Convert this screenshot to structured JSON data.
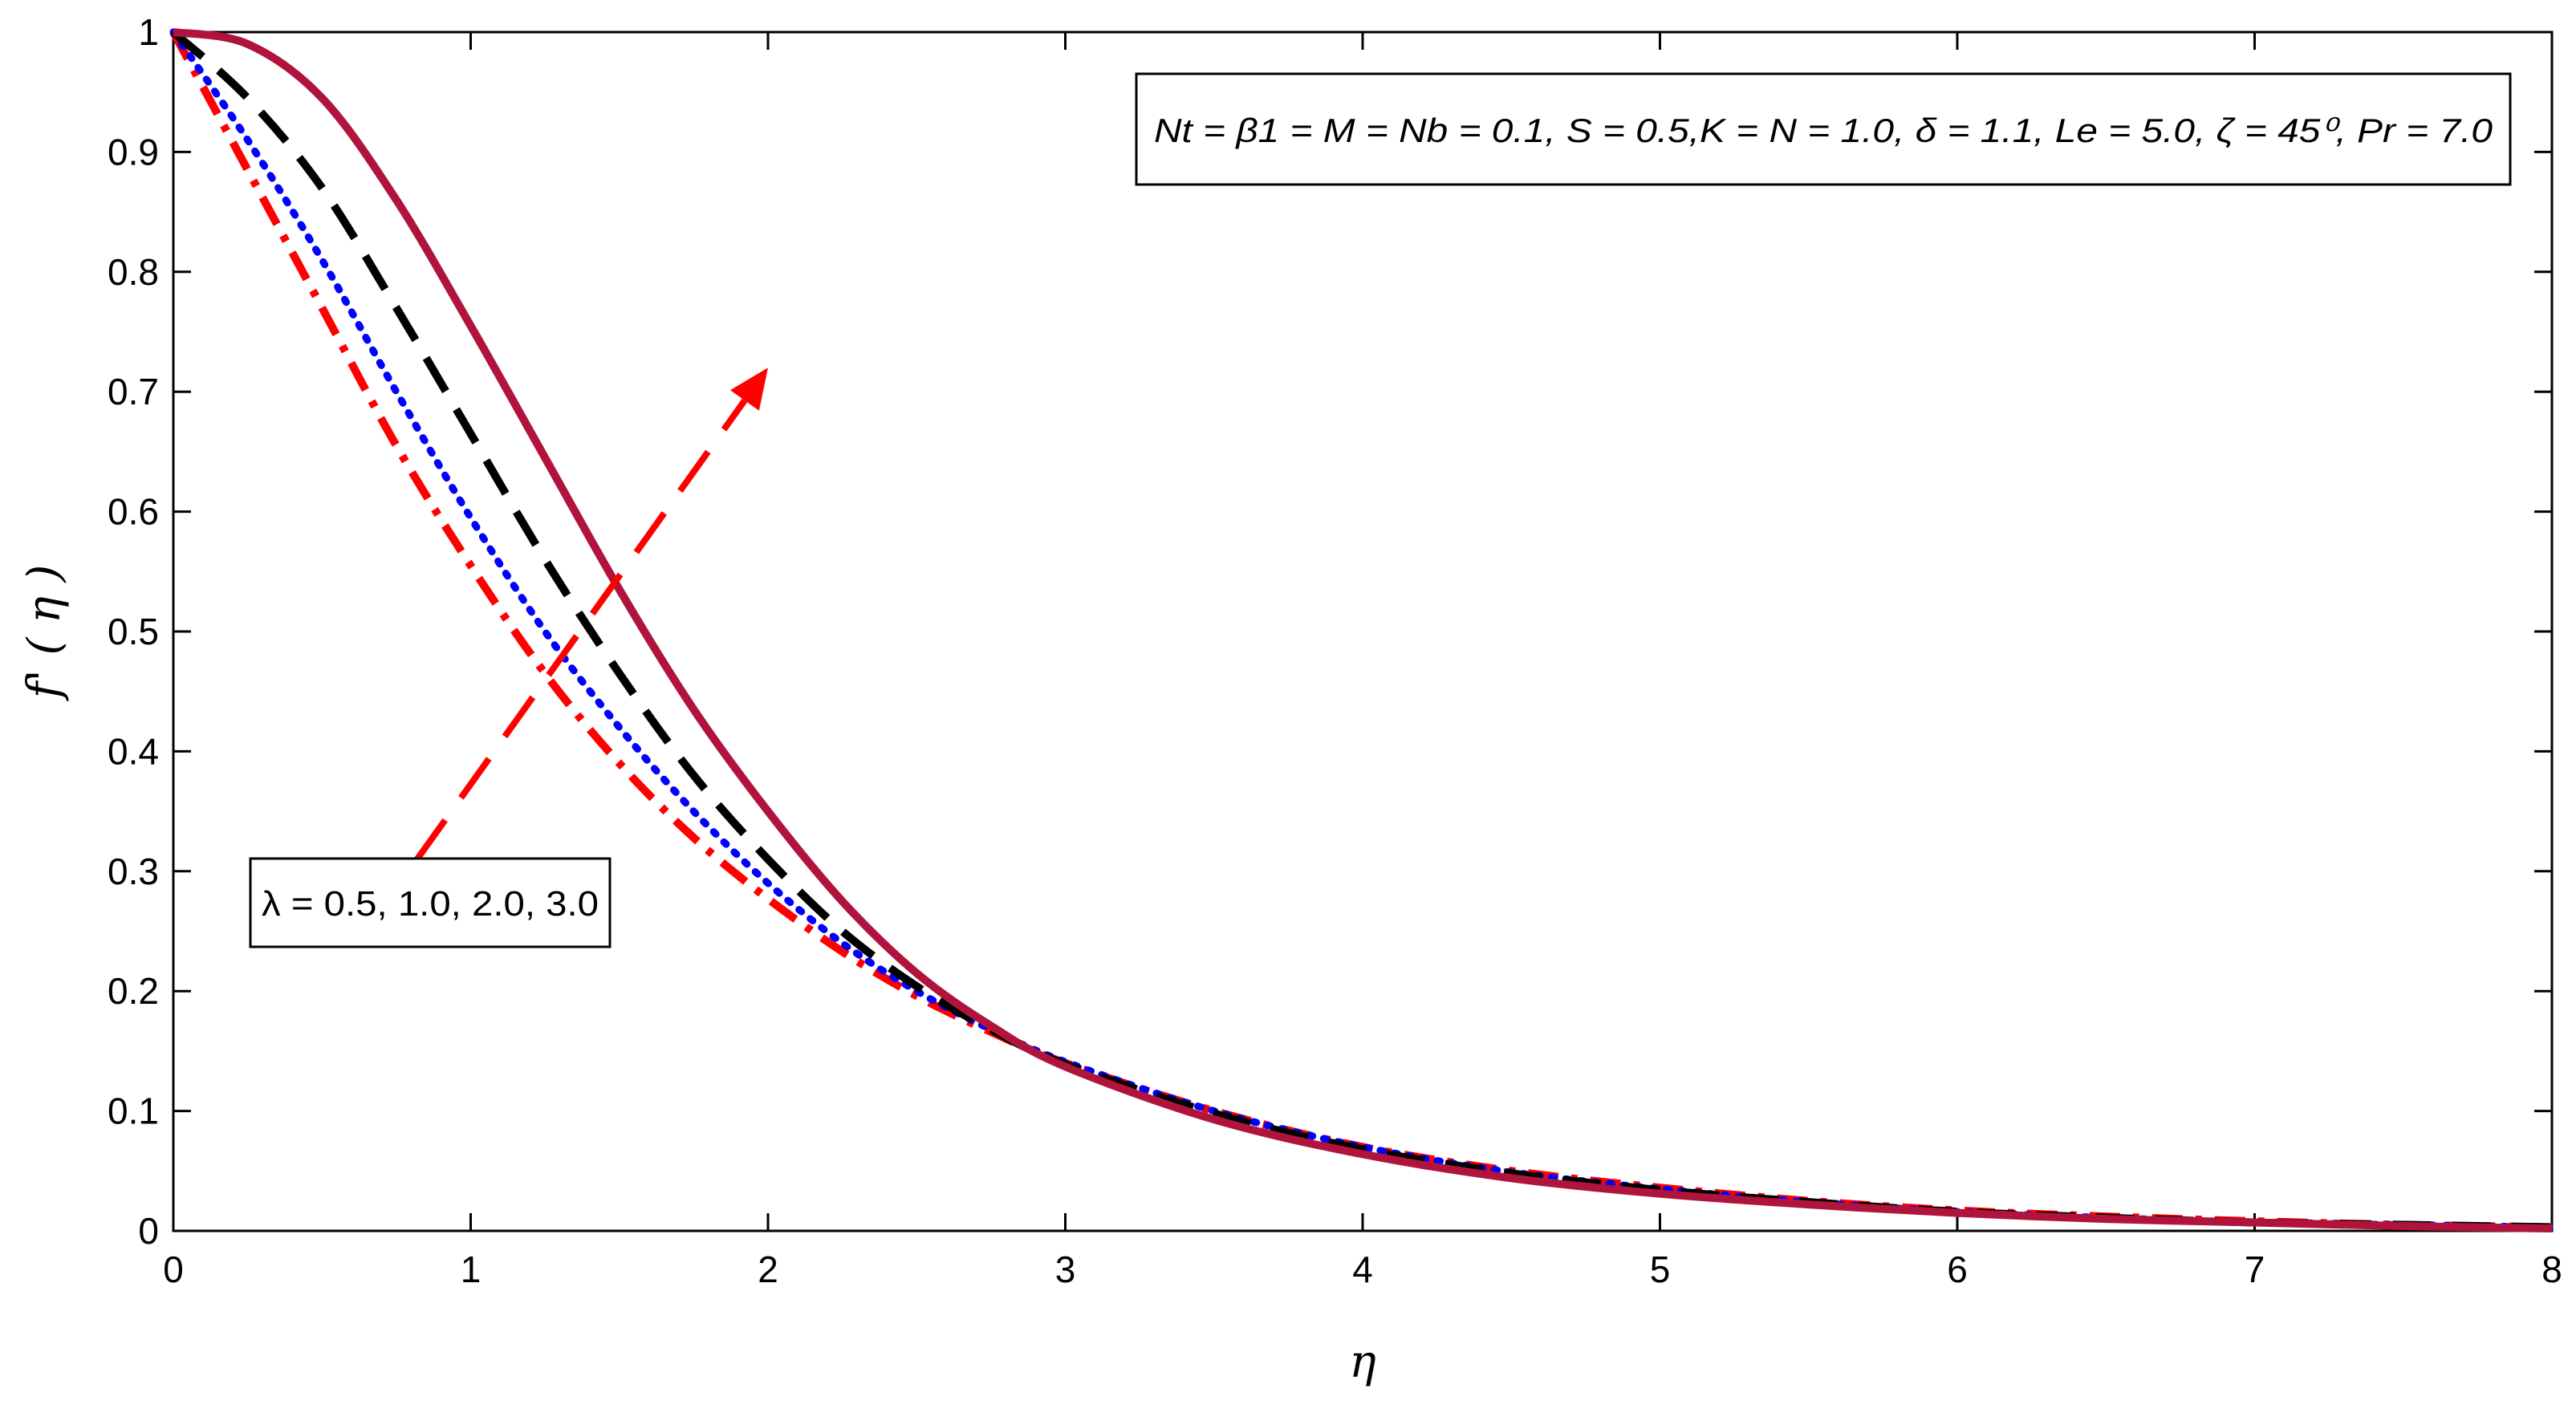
{
  "chart_data": {
    "type": "line",
    "title": "",
    "xlabel": "η",
    "ylabel": "f' ( η )",
    "xlim": [
      0,
      8
    ],
    "ylim": [
      0,
      1
    ],
    "xticks": [
      0,
      1,
      2,
      3,
      4,
      5,
      6,
      7,
      8
    ],
    "yticks": [
      0,
      0.1,
      0.2,
      0.3,
      0.4,
      0.5,
      0.6,
      0.7,
      0.8,
      0.9,
      1
    ],
    "grid": false,
    "x": [
      0,
      0.25,
      0.5,
      0.75,
      1.0,
      1.25,
      1.5,
      1.75,
      2.0,
      2.25,
      2.5,
      2.75,
      3.0,
      3.5,
      4.0,
      4.5,
      5.0,
      5.5,
      6.0,
      6.5,
      7.0,
      7.5,
      8.0
    ],
    "series": [
      {
        "color": "#ff0000",
        "dash": "dashdot",
        "values": [
          1.0,
          0.885,
          0.77,
          0.655,
          0.555,
          0.465,
          0.39,
          0.328,
          0.277,
          0.233,
          0.196,
          0.166,
          0.14,
          0.1,
          0.07,
          0.05,
          0.036,
          0.025,
          0.017,
          0.012,
          0.008,
          0.005,
          0.003
        ]
      },
      {
        "color": "#0000ff",
        "dash": "dotted",
        "values": [
          1.0,
          0.91,
          0.81,
          0.7,
          0.595,
          0.5,
          0.42,
          0.35,
          0.29,
          0.24,
          0.2,
          0.168,
          0.141,
          0.1,
          0.07,
          0.049,
          0.035,
          0.024,
          0.016,
          0.011,
          0.007,
          0.005,
          0.003
        ]
      },
      {
        "color": "#000000",
        "dash": "dashed",
        "values": [
          1.0,
          0.945,
          0.87,
          0.77,
          0.665,
          0.56,
          0.465,
          0.38,
          0.31,
          0.25,
          0.204,
          0.168,
          0.139,
          0.098,
          0.068,
          0.048,
          0.034,
          0.024,
          0.016,
          0.011,
          0.007,
          0.005,
          0.003
        ]
      },
      {
        "color": "#b0143c",
        "dash": "solid",
        "values": [
          1.0,
          0.99,
          0.945,
          0.86,
          0.755,
          0.645,
          0.535,
          0.435,
          0.35,
          0.275,
          0.215,
          0.171,
          0.137,
          0.093,
          0.064,
          0.044,
          0.031,
          0.022,
          0.015,
          0.01,
          0.007,
          0.004,
          0.002
        ]
      }
    ],
    "arrow": {
      "from": [
        0.82,
        0.31
      ],
      "to": [
        2.0,
        0.72
      ],
      "color": "#ff0000"
    },
    "annotation_text": "λ = 0.5, 1.0, 2.0, 3.0",
    "legend_text": "Nt = β1 = M = Nb = 0.1, S = 0.5,K = N = 1.0, δ = 1.1, Le = 5.0, ζ = 45⁰, Pr = 7.0",
    "legend_position": "top-right"
  }
}
